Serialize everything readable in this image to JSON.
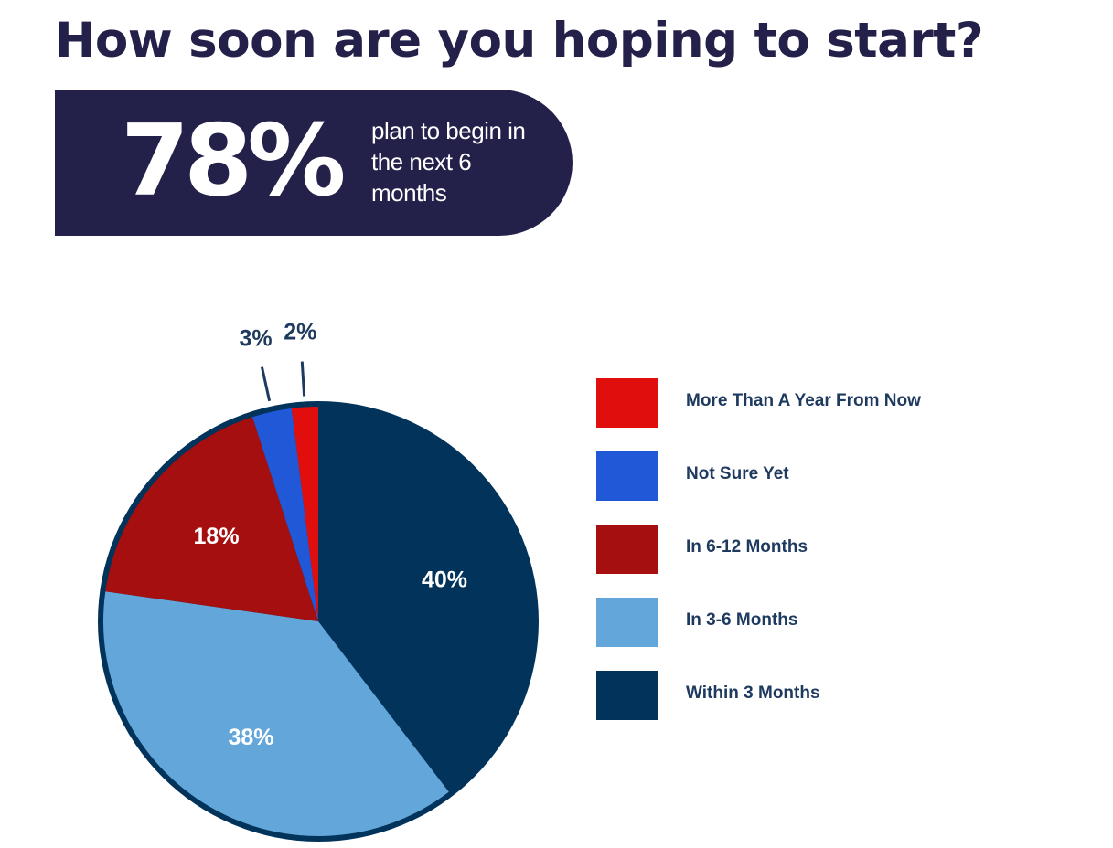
{
  "title": "How soon are you hoping to start?",
  "highlight": {
    "value": "78%",
    "text": "plan to begin in the next 6 months"
  },
  "chart_data": {
    "type": "pie",
    "slices": [
      {
        "label": "Within 3 Months",
        "value": 40,
        "display": "40%",
        "color": "#02335a"
      },
      {
        "label": "In 3-6 Months",
        "value": 38,
        "display": "38%",
        "color": "#62a6da"
      },
      {
        "label": "In 6-12 Months",
        "value": 18,
        "display": "18%",
        "color": "#a50f0f"
      },
      {
        "label": "Not Sure Yet",
        "value": 3,
        "display": "3%",
        "color": "#2158d8"
      },
      {
        "label": "More Than A Year From Now",
        "value": 2,
        "display": "2%",
        "color": "#e10e0e"
      }
    ],
    "legend": [
      "More Than A Year From Now",
      "Not Sure Yet",
      "In 6-12 Months",
      "In 3-6 Months",
      "Within 3 Months"
    ],
    "legend_position": "right"
  }
}
